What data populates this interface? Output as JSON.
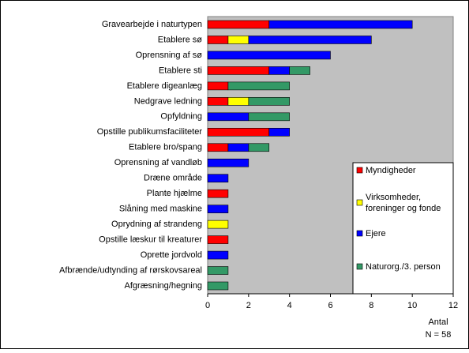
{
  "chart_data": {
    "type": "stacked_barh",
    "categories": [
      "Gravearbejde i naturtypen",
      "Etablere sø",
      "Oprensning af sø",
      "Etablere sti",
      "Etablere digeanlæg",
      "Nedgrave ledning",
      "Opfyldning",
      "Opstille publikumsfaciliteter",
      "Etablere bro/spang",
      "Oprensning af vandløb",
      "Dræne område",
      "Plante hjælme",
      "Slåning med maskine",
      "Oprydning af strandeng",
      "Opstille læskur til kreaturer",
      "Oprette jordvold",
      "Afbrænde/udtynding af rørskovsareal",
      "Afgræsning/hegning"
    ],
    "series": [
      {
        "name": "Myndigheder",
        "color": "#ff0000",
        "values": [
          3,
          1,
          0,
          3,
          1,
          1,
          0,
          3,
          1,
          0,
          0,
          1,
          0,
          0,
          1,
          0,
          0,
          0
        ]
      },
      {
        "name": "Virksomheder, foreninger og fonde",
        "color": "#ffff00",
        "values": [
          0,
          1,
          0,
          0,
          0,
          1,
          0,
          0,
          0,
          0,
          0,
          0,
          0,
          1,
          0,
          0,
          0,
          0
        ]
      },
      {
        "name": "Ejere",
        "color": "#0000ff",
        "values": [
          7,
          6,
          6,
          1,
          0,
          0,
          2,
          1,
          1,
          2,
          1,
          0,
          1,
          0,
          0,
          1,
          0,
          0
        ]
      },
      {
        "name": "Naturorg./3. person",
        "color": "#339966",
        "values": [
          0,
          0,
          0,
          1,
          3,
          2,
          2,
          0,
          1,
          0,
          0,
          0,
          0,
          0,
          0,
          0,
          1,
          1
        ]
      }
    ],
    "xlim": [
      0,
      12
    ],
    "xticks": [
      0,
      2,
      4,
      6,
      8,
      10,
      12
    ],
    "xlabel": "Antal",
    "annotation": "N = 58",
    "plot_background": "#c0c0c0"
  }
}
